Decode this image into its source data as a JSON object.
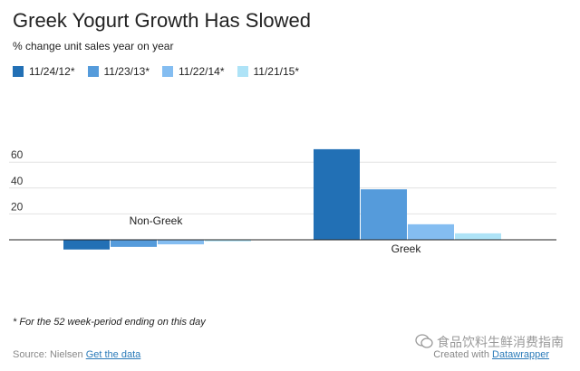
{
  "title": "Greek Yogurt Growth Has Slowed",
  "subtitle": "% change unit sales year on year",
  "footnote": "* For the 52 week-period ending on this day",
  "source_label": "Source: Nielsen",
  "source_link": "Get the data",
  "credit_label": "Created with",
  "credit_link": "Datawrapper",
  "watermark_text": "食品饮料生鲜消费指南",
  "chart_data": {
    "type": "bar",
    "categories": [
      "Non-Greek",
      "Greek"
    ],
    "series": [
      {
        "name": "11/24/12*",
        "color": "#2270b5",
        "values": [
          -7.5,
          70
        ]
      },
      {
        "name": "11/23/13*",
        "color": "#559bdb",
        "values": [
          -5.5,
          39
        ]
      },
      {
        "name": "11/22/14*",
        "color": "#84bdf1",
        "values": [
          -3.5,
          12
        ]
      },
      {
        "name": "11/21/15*",
        "color": "#aee3f7",
        "values": [
          -1.2,
          5
        ]
      }
    ],
    "yticks": [
      20,
      40,
      60
    ],
    "ylim": [
      -10,
      75
    ],
    "grid": true,
    "legend_position": "top-left",
    "title": "Greek Yogurt Growth Has Slowed",
    "xlabel": "",
    "ylabel": ""
  }
}
